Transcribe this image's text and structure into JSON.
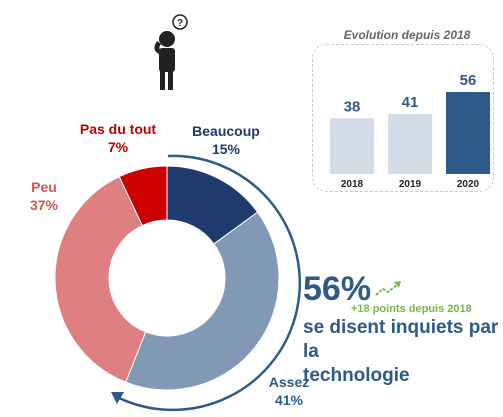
{
  "chart_data": [
    {
      "type": "pie",
      "title": "",
      "slices": [
        {
          "label": "Beaucoup",
          "value": 15,
          "value_label": "15%",
          "color": "#1f3b6b"
        },
        {
          "label": "Assez",
          "value": 41,
          "value_label": "41%",
          "color": "#8199b5"
        },
        {
          "label": "Peu",
          "value": 37,
          "value_label": "37%",
          "color": "#e07f7f"
        },
        {
          "label": "Pas du tout",
          "value": 7,
          "value_label": "7%",
          "color": "#cc0000"
        }
      ]
    },
    {
      "type": "bar",
      "title": "Evolution depuis 2018",
      "categories": [
        "2018",
        "2019",
        "2020"
      ],
      "values": [
        38,
        41,
        56
      ],
      "value_labels": [
        "38",
        "41",
        "56"
      ],
      "colors": [
        "#d3dbe6",
        "#d3dbe6",
        "#2e5a8a"
      ]
    }
  ],
  "headline": {
    "percent": "56%",
    "delta": "+18 points depuis 2018",
    "line1": "se disent inquiets par la",
    "line2": "technologie"
  },
  "icons": {
    "person": "person-thinking-icon",
    "trend": "trending-up-icon"
  },
  "colors": {
    "label_dark": "#1f3b6b",
    "label_mid": "#2e5a8a",
    "label_red": "#c00000",
    "label_pink": "#d9534f",
    "accent_green": "#7ab648"
  }
}
